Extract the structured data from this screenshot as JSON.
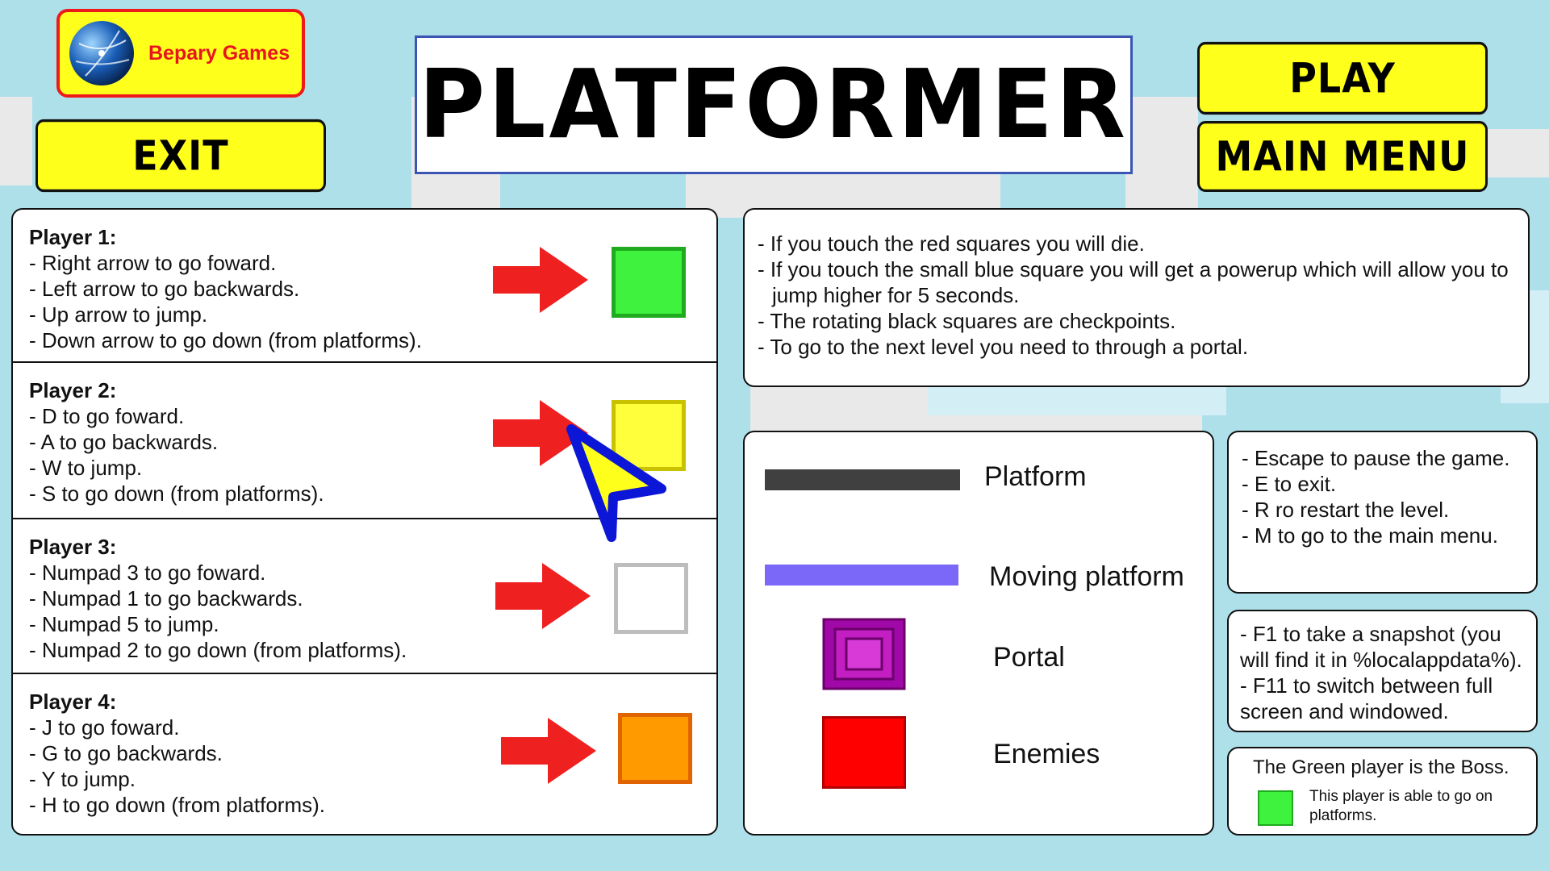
{
  "logo": {
    "label": "Bepary Games"
  },
  "title": "PLATFORMER",
  "buttons": {
    "exit": "EXIT",
    "play": "PLAY",
    "main_menu": "MAIN MENU"
  },
  "players": [
    {
      "heading": "Player 1:",
      "lines": [
        "- Right arrow to go foward.",
        "- Left arrow to go backwards.",
        "- Up arrow to jump.",
        "- Down arrow to go down (from platforms)."
      ],
      "color": "#3ef23e",
      "border": "#1faa1f"
    },
    {
      "heading": "Player 2:",
      "lines": [
        "- D to go foward.",
        "- A to go backwards.",
        "- W to jump.",
        "- S to go down (from platforms)."
      ],
      "color": "#ffff3c",
      "border": "#c9c200"
    },
    {
      "heading": "Player 3:",
      "lines": [
        "- Numpad 3 to go foward.",
        "- Numpad 1 to go backwards.",
        "- Numpad 5 to jump.",
        "- Numpad 2 to go down (from platforms)."
      ],
      "color": "#ffffff",
      "border": "#bdbdbd"
    },
    {
      "heading": "Player 4:",
      "lines": [
        "- J to go foward.",
        "- G to go backwards.",
        "- Y to jump.",
        "- H to go down (from platforms)."
      ],
      "color": "#ff9a00",
      "border": "#e06400"
    }
  ],
  "rules": [
    "- If you touch the red squares you will die.",
    "- If you touch the small blue square you will get a powerup which will allow you to jump higher for 5 seconds.",
    "- The rotating black squares are checkpoints.",
    "- To go to the next level you need to through a portal."
  ],
  "legend": {
    "platform": "Platform",
    "moving_platform": "Moving platform",
    "portal": "Portal",
    "enemies": "Enemies"
  },
  "keys": [
    "- Escape to pause the game.",
    "- E to exit.",
    "- R ro restart the level.",
    "- M to go to the main menu."
  ],
  "fkeys": [
    "- F1 to take a snapshot (you will find it in %localappdata%).",
    "- F11 to switch between full screen and windowed."
  ],
  "boss": {
    "title": "The Green player is the Boss.",
    "desc": "This player is able to go on platforms."
  },
  "colors": {
    "accent_yellow": "#ffff1c",
    "background": "#aee0ea",
    "platform": "#404040",
    "moving_platform": "#7b68f8",
    "portal": "#a008a8",
    "enemy": "#ff0000",
    "cursor": "#0b16d6"
  }
}
